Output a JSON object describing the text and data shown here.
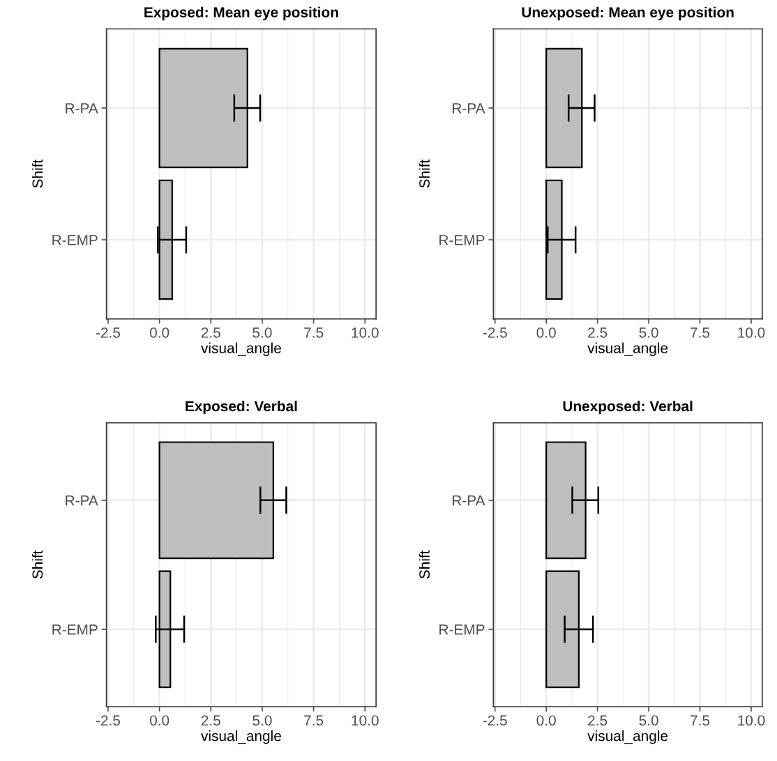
{
  "chart_data": [
    {
      "type": "bar",
      "orientation": "horizontal",
      "title": "Exposed: Mean eye position",
      "xlabel": "visual_angle",
      "ylabel": "Shift",
      "categories": [
        "R-PA",
        "R-EMP"
      ],
      "values": [
        4.28,
        0.62
      ],
      "errors": [
        [
          3.64,
          4.9
        ],
        [
          -0.08,
          1.3
        ]
      ],
      "color": "#bebebe",
      "xlim": [
        -2.58,
        10.54
      ],
      "xticks": [
        {
          "value": -2.5,
          "label": "-2.5"
        },
        {
          "value": 0,
          "label": "0.0"
        },
        {
          "value": 2.5,
          "label": "2.5"
        },
        {
          "value": 5,
          "label": "5.0"
        },
        {
          "value": 7.5,
          "label": "7.5"
        },
        {
          "value": 10,
          "label": "10.0"
        }
      ],
      "grid": true
    },
    {
      "type": "bar",
      "orientation": "horizontal",
      "title": "Unexposed: Mean eye position",
      "xlabel": "visual_angle",
      "ylabel": "Shift",
      "categories": [
        "R-PA",
        "R-EMP"
      ],
      "values": [
        1.74,
        0.76
      ],
      "errors": [
        [
          1.09,
          2.36
        ],
        [
          0.07,
          1.43
        ]
      ],
      "color": "#bebebe",
      "xlim": [
        -2.58,
        10.54
      ],
      "xticks": [
        {
          "value": -2.5,
          "label": "-2.5"
        },
        {
          "value": 0,
          "label": "0.0"
        },
        {
          "value": 2.5,
          "label": "2.5"
        },
        {
          "value": 5,
          "label": "5.0"
        },
        {
          "value": 7.5,
          "label": "7.5"
        },
        {
          "value": 10,
          "label": "10.0"
        }
      ],
      "grid": true
    },
    {
      "type": "bar",
      "orientation": "horizontal",
      "title": "Exposed: Verbal",
      "xlabel": "visual_angle",
      "ylabel": "Shift",
      "categories": [
        "R-PA",
        "R-EMP"
      ],
      "values": [
        5.54,
        0.53
      ],
      "errors": [
        [
          4.91,
          6.17
        ],
        [
          -0.18,
          1.2
        ]
      ],
      "color": "#bebebe",
      "xlim": [
        -2.58,
        10.54
      ],
      "xticks": [
        {
          "value": -2.5,
          "label": "-2.5"
        },
        {
          "value": 0,
          "label": "0.0"
        },
        {
          "value": 2.5,
          "label": "2.5"
        },
        {
          "value": 5,
          "label": "5.0"
        },
        {
          "value": 7.5,
          "label": "7.5"
        },
        {
          "value": 10,
          "label": "10.0"
        }
      ],
      "grid": true
    },
    {
      "type": "bar",
      "orientation": "horizontal",
      "title": "Unexposed: Verbal",
      "xlabel": "visual_angle",
      "ylabel": "Shift",
      "categories": [
        "R-PA",
        "R-EMP"
      ],
      "values": [
        1.92,
        1.59
      ],
      "errors": [
        [
          1.27,
          2.54
        ],
        [
          0.9,
          2.28
        ]
      ],
      "color": "#bebebe",
      "xlim": [
        -2.58,
        10.54
      ],
      "xticks": [
        {
          "value": -2.5,
          "label": "-2.5"
        },
        {
          "value": 0,
          "label": "0.0"
        },
        {
          "value": 2.5,
          "label": "2.5"
        },
        {
          "value": 5,
          "label": "5.0"
        },
        {
          "value": 7.5,
          "label": "7.5"
        },
        {
          "value": 10,
          "label": "10.0"
        }
      ],
      "grid": true
    }
  ]
}
